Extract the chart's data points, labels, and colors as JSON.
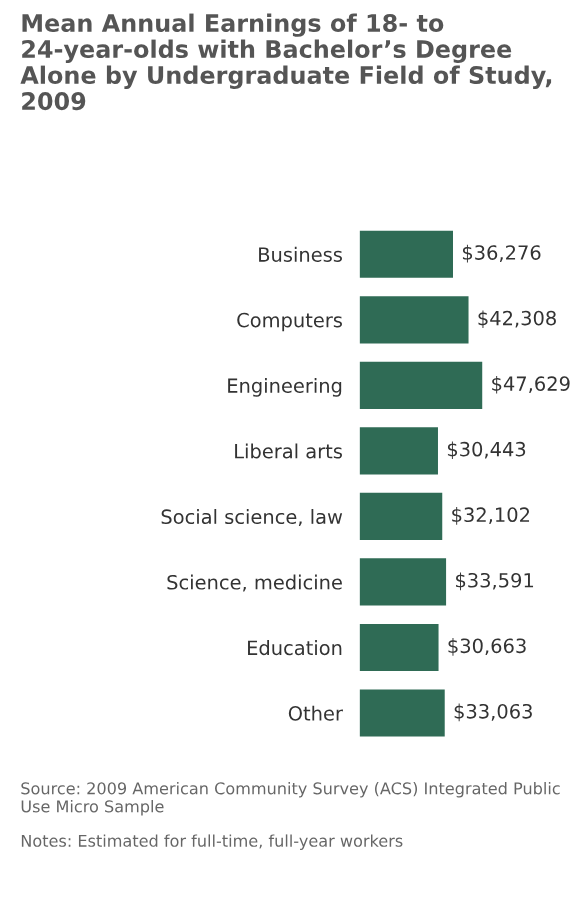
{
  "chart_data": {
    "type": "bar",
    "orientation": "horizontal",
    "title": "Mean Annual Earnings of 18- to 24-year-olds with Bachelor’s Degree Alone by Undergraduate Field of Study, 2009",
    "categories": [
      "Business",
      "Computers",
      "Engineering",
      "Liberal arts",
      "Social science, law",
      "Science, medicine",
      "Education",
      "Other"
    ],
    "values": [
      36276,
      42308,
      47629,
      30443,
      32102,
      33591,
      30663,
      33063
    ],
    "value_labels": [
      "$36,276",
      "$42,308",
      "$47,629",
      "$30,443",
      "$32,102",
      "$33,591",
      "$30,663",
      "$33,063"
    ],
    "color": "#2f6b55",
    "tick_labels": "y",
    "grid": false,
    "legend": false,
    "annotations": [
      "Source: 2009 American Community Survey (ACS) Integrated Public Use Micro Sample",
      "Notes: Estimated for full-time, full-year workers"
    ]
  }
}
